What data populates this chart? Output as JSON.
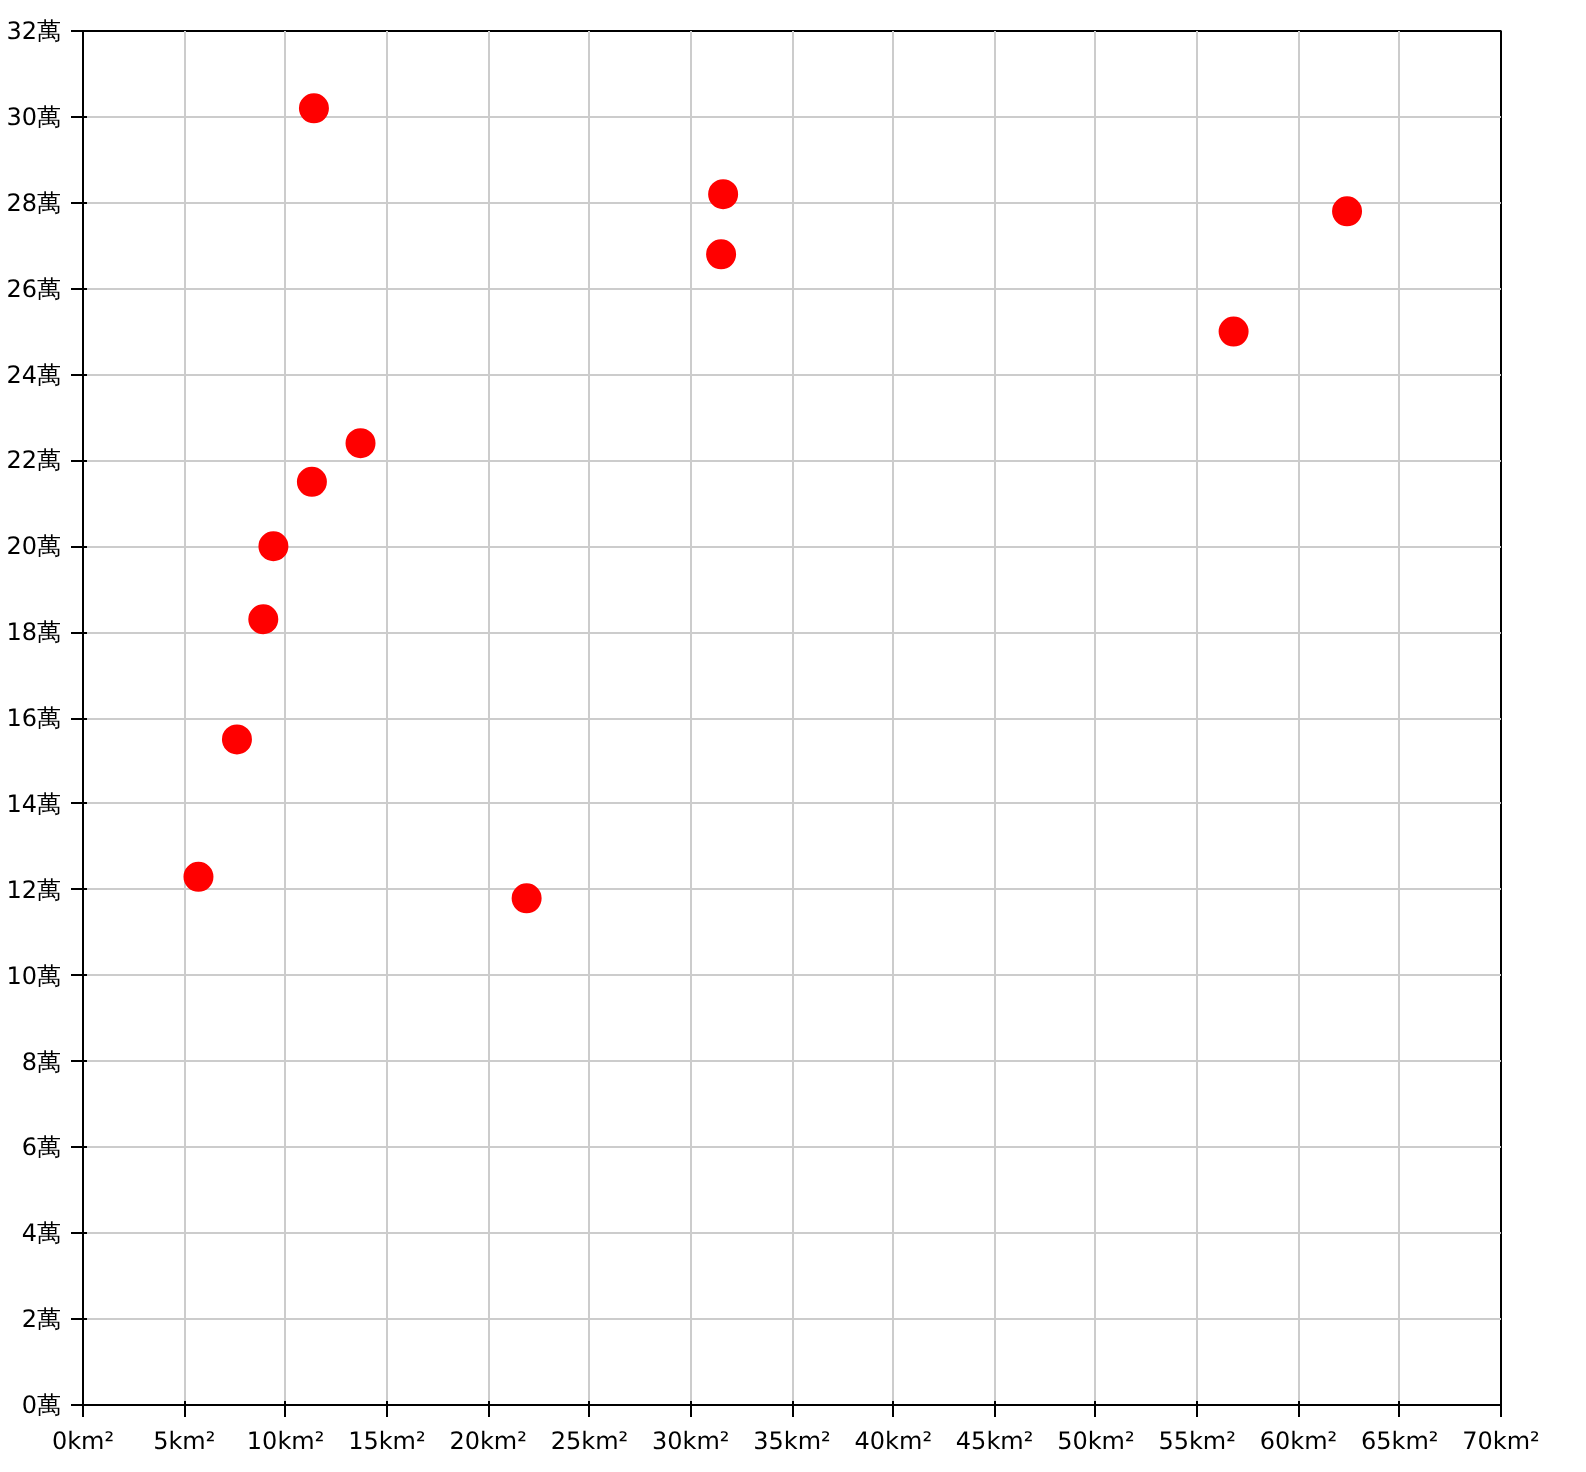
{
  "chart_data": {
    "type": "scatter",
    "color": "#ff0000",
    "marker": "circle",
    "grid": true,
    "x": [
      5.7,
      7.6,
      8.9,
      9.4,
      11.3,
      11.4,
      13.7,
      21.9,
      31.5,
      31.6,
      56.8,
      62.4
    ],
    "values": [
      12.3,
      15.5,
      18.3,
      20.0,
      21.5,
      30.2,
      22.4,
      11.8,
      26.8,
      28.2,
      25.0,
      27.8
    ],
    "xlim": [
      0,
      70
    ],
    "xticks": [
      {
        "value": 0,
        "label": "0km²"
      },
      {
        "value": 5,
        "label": "5km²"
      },
      {
        "value": 10,
        "label": "10km²"
      },
      {
        "value": 15,
        "label": "15km²"
      },
      {
        "value": 20,
        "label": "20km²"
      },
      {
        "value": 25,
        "label": "25km²"
      },
      {
        "value": 30,
        "label": "30km²"
      },
      {
        "value": 35,
        "label": "35km²"
      },
      {
        "value": 40,
        "label": "40km²"
      },
      {
        "value": 45,
        "label": "45km²"
      },
      {
        "value": 50,
        "label": "50km²"
      },
      {
        "value": 55,
        "label": "55km²"
      },
      {
        "value": 60,
        "label": "60km²"
      },
      {
        "value": 65,
        "label": "65km²"
      },
      {
        "value": 70,
        "label": "70km²"
      }
    ],
    "ylim": [
      0,
      32
    ],
    "yticks": [
      {
        "value": 0,
        "label": "0萬"
      },
      {
        "value": 2,
        "label": "2萬"
      },
      {
        "value": 4,
        "label": "4萬"
      },
      {
        "value": 6,
        "label": "6萬"
      },
      {
        "value": 8,
        "label": "8萬"
      },
      {
        "value": 10,
        "label": "10萬"
      },
      {
        "value": 12,
        "label": "12萬"
      },
      {
        "value": 14,
        "label": "14萬"
      },
      {
        "value": 16,
        "label": "16萬"
      },
      {
        "value": 18,
        "label": "18萬"
      },
      {
        "value": 20,
        "label": "20萬"
      },
      {
        "value": 22,
        "label": "22萬"
      },
      {
        "value": 24,
        "label": "24萬"
      },
      {
        "value": 26,
        "label": "26萬"
      },
      {
        "value": 28,
        "label": "28萬"
      },
      {
        "value": 30,
        "label": "30萬"
      },
      {
        "value": 32,
        "label": "32萬"
      }
    ]
  }
}
